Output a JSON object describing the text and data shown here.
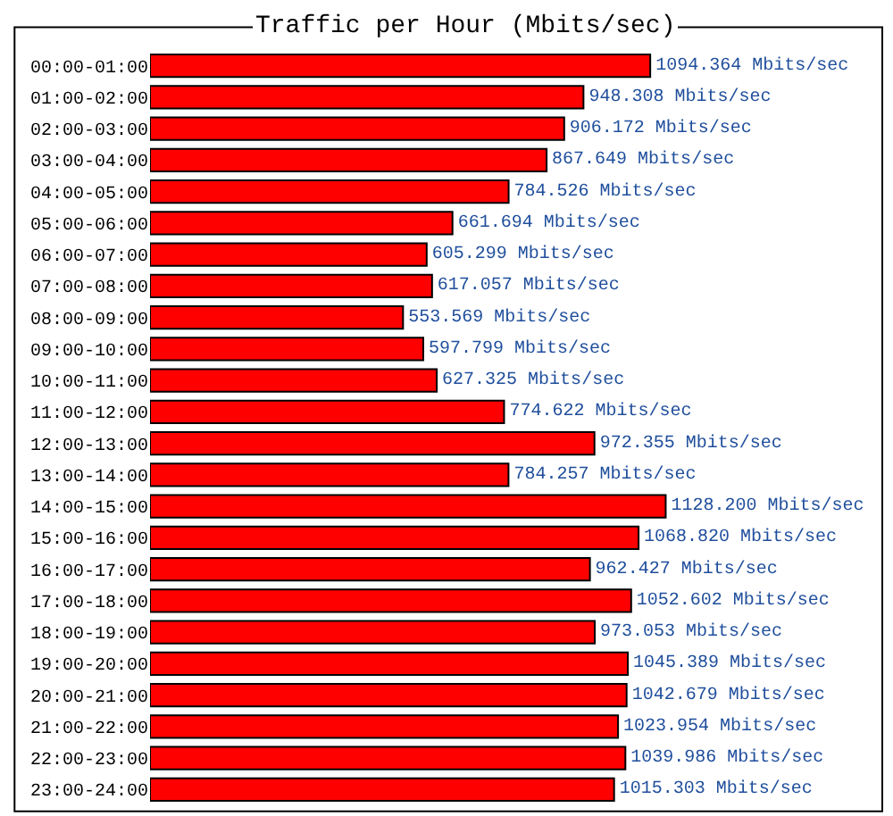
{
  "chart_data": {
    "type": "bar",
    "title": "Traffic per Hour (Mbits/sec)",
    "orientation": "horizontal",
    "color": "#ff0000",
    "categories": [
      "00:00-01:00",
      "01:00-02:00",
      "02:00-03:00",
      "03:00-04:00",
      "04:00-05:00",
      "05:00-06:00",
      "06:00-07:00",
      "07:00-08:00",
      "08:00-09:00",
      "09:00-10:00",
      "10:00-11:00",
      "11:00-12:00",
      "12:00-13:00",
      "13:00-14:00",
      "14:00-15:00",
      "15:00-16:00",
      "16:00-17:00",
      "17:00-18:00",
      "18:00-19:00",
      "19:00-20:00",
      "20:00-21:00",
      "21:00-22:00",
      "22:00-23:00",
      "23:00-24:00"
    ],
    "values": [
      1094.364,
      948.308,
      906.172,
      867.649,
      784.526,
      661.694,
      605.299,
      617.057,
      553.569,
      597.799,
      627.325,
      774.622,
      972.355,
      784.257,
      1128.2,
      1068.82,
      962.427,
      1052.602,
      973.053,
      1045.389,
      1042.679,
      1023.954,
      1039.986,
      1015.303
    ],
    "value_labels": [
      "1094.364 Mbits/sec",
      "948.308 Mbits/sec",
      "906.172 Mbits/sec",
      "867.649 Mbits/sec",
      "784.526 Mbits/sec",
      "661.694 Mbits/sec",
      "605.299 Mbits/sec",
      "617.057 Mbits/sec",
      "553.569 Mbits/sec",
      "597.799 Mbits/sec",
      "627.325 Mbits/sec",
      "774.622 Mbits/sec",
      "972.355 Mbits/sec",
      "784.257 Mbits/sec",
      "1128.200 Mbits/sec",
      "1068.820 Mbits/sec",
      "962.427 Mbits/sec",
      "1052.602 Mbits/sec",
      "973.053 Mbits/sec",
      "1045.389 Mbits/sec",
      "1042.679 Mbits/sec",
      "1023.954 Mbits/sec",
      "1039.986 Mbits/sec",
      "1015.303 Mbits/sec"
    ],
    "legend": false
  }
}
